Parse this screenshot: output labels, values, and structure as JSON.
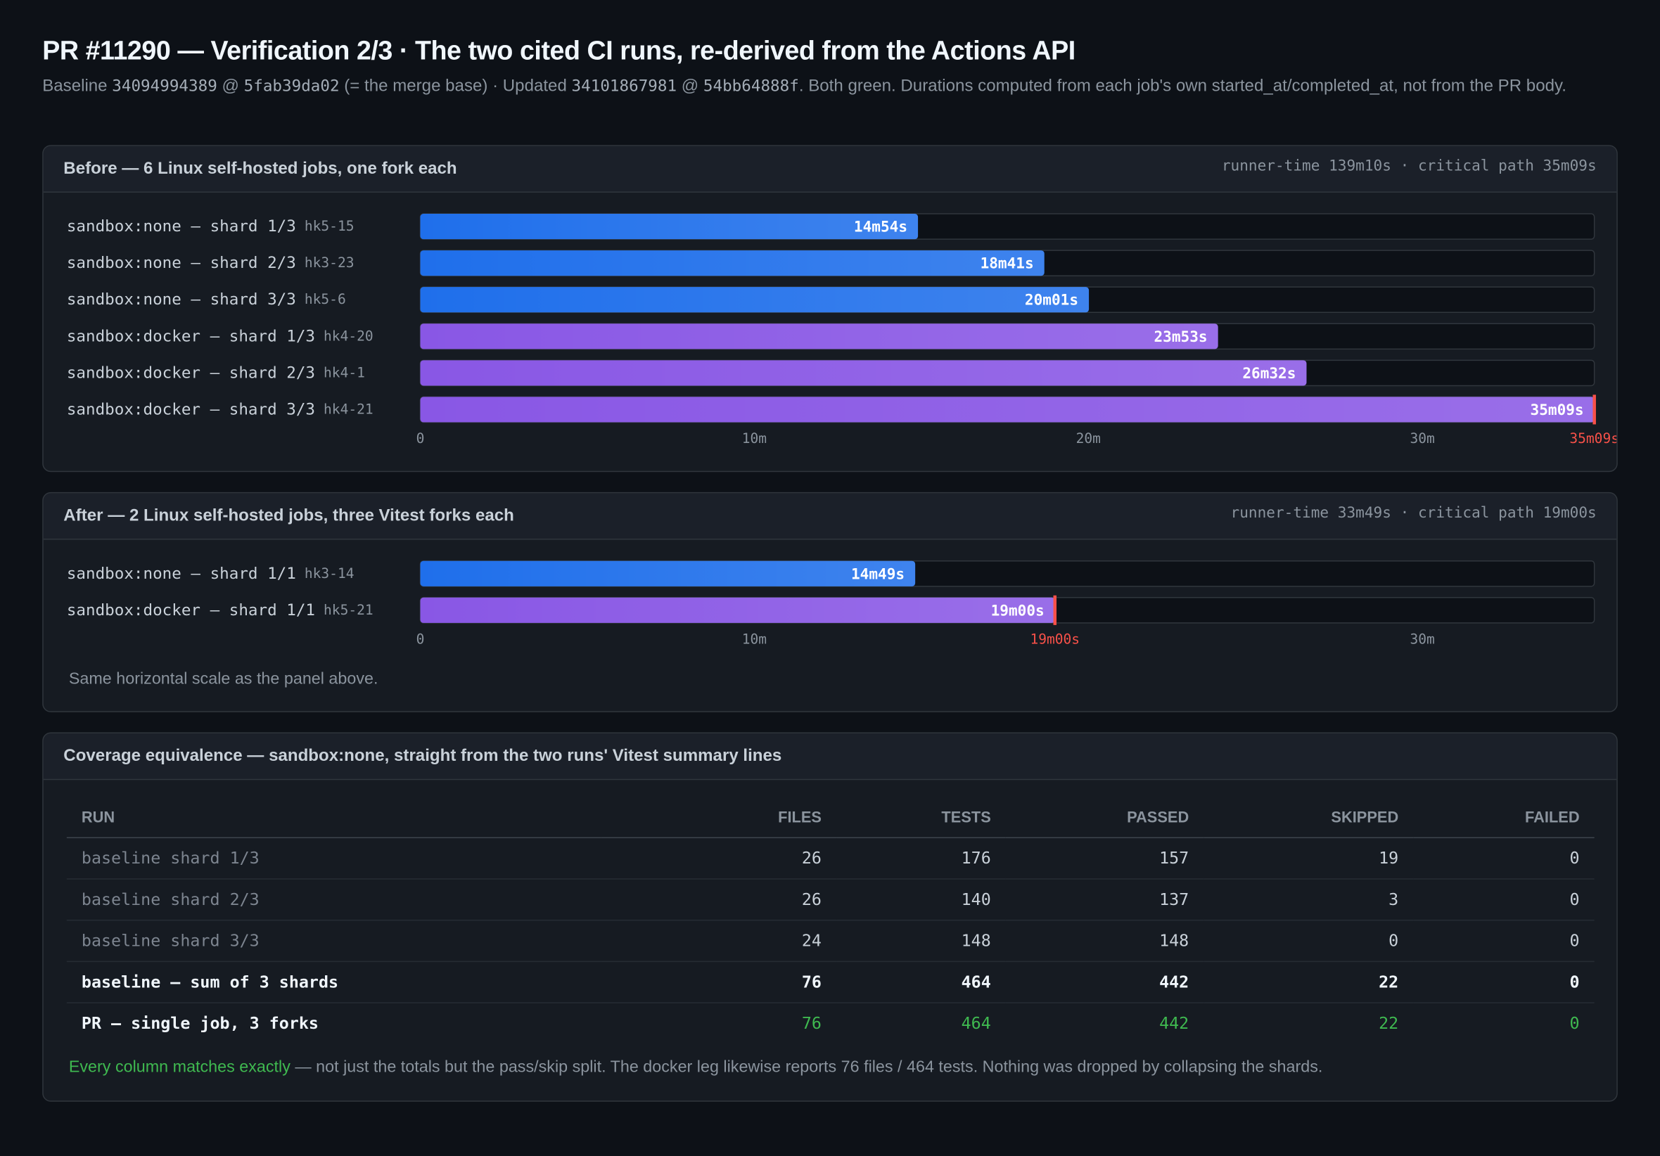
{
  "header": {
    "title": "PR #11290 — Verification 2/3 · The two cited CI runs, re-derived from the Actions API",
    "subtitle_parts": [
      "Baseline ",
      "34094994389",
      " @ ",
      "5fab39da02",
      " (= the merge base) · Updated ",
      "34101867981",
      " @ ",
      "54bb64888f",
      ". Both green. Durations computed from each job's own started_at/completed_at, not from the PR body."
    ]
  },
  "chart_data": [
    {
      "type": "bar",
      "orientation": "horizontal",
      "title": "Before — 6 Linux self-hosted jobs, one fork each",
      "meta": "runner-time 139m10s · critical path 35m09s",
      "categories": [
        "sandbox:none — shard 1/3",
        "sandbox:none — shard 2/3",
        "sandbox:none — shard 3/3",
        "sandbox:docker — shard 1/3",
        "sandbox:docker — shard 2/3",
        "sandbox:docker — shard 3/3"
      ],
      "hosts": [
        "hk5-15",
        "hk3-23",
        "hk5-6",
        "hk4-20",
        "hk4-1",
        "hk4-21"
      ],
      "values": [
        14.9,
        18.683,
        20.017,
        23.883,
        26.533,
        35.15
      ],
      "value_labels": [
        "14m54s",
        "18m41s",
        "20m01s",
        "23m53s",
        "26m32s",
        "35m09s"
      ],
      "colors": [
        "#1f6feb",
        "#1f6feb",
        "#1f6feb",
        "#8957e5",
        "#8957e5",
        "#8957e5"
      ],
      "xlim": [
        0,
        35.15
      ],
      "xticks": [
        0,
        {
          "value": 10,
          "label": "10m"
        },
        {
          "value": 20,
          "label": "20m"
        },
        {
          "value": 30,
          "label": "30m"
        }
      ],
      "critical_path": {
        "value": 35.15,
        "label": "35m09s",
        "color": "#f85149"
      }
    },
    {
      "type": "bar",
      "orientation": "horizontal",
      "title": "After — 2 Linux self-hosted jobs, three Vitest forks each",
      "meta": "runner-time 33m49s · critical path 19m00s",
      "categories": [
        "sandbox:none — shard 1/1",
        "sandbox:docker — shard 1/1"
      ],
      "hosts": [
        "hk3-14",
        "hk5-21"
      ],
      "values": [
        14.817,
        19
      ],
      "value_labels": [
        "14m49s",
        "19m00s"
      ],
      "colors": [
        "#1f6feb",
        "#8957e5"
      ],
      "xlim": [
        0,
        35.15
      ],
      "xticks": [
        0,
        {
          "value": 10,
          "label": "10m"
        },
        {
          "value": 30,
          "label": "30m"
        }
      ],
      "critical_path": {
        "value": 19,
        "label": "19m00s",
        "color": "#f85149"
      },
      "note": "Same horizontal scale as the panel above."
    }
  ],
  "coverage": {
    "title": "Coverage equivalence — sandbox:none, straight from the two runs' Vitest summary lines",
    "columns": [
      "RUN",
      "FILES",
      "TESTS",
      "PASSED",
      "SKIPPED",
      "FAILED"
    ],
    "rows": [
      [
        "baseline shard 1/3",
        26,
        176,
        157,
        19,
        0
      ],
      [
        "baseline shard 2/3",
        26,
        140,
        137,
        3,
        0
      ],
      [
        "baseline shard 3/3",
        24,
        148,
        148,
        0,
        0
      ],
      [
        "baseline — sum of 3 shards",
        76,
        464,
        442,
        22,
        0
      ],
      [
        "PR — single job, 3 forks",
        76,
        464,
        442,
        22,
        0
      ]
    ],
    "footnote_highlight": "Every column matches exactly",
    "footnote_rest": " — not just the totals but the pass/skip split. The docker leg likewise reports 76 files / 464 tests. Nothing was dropped by collapsing the shards."
  }
}
